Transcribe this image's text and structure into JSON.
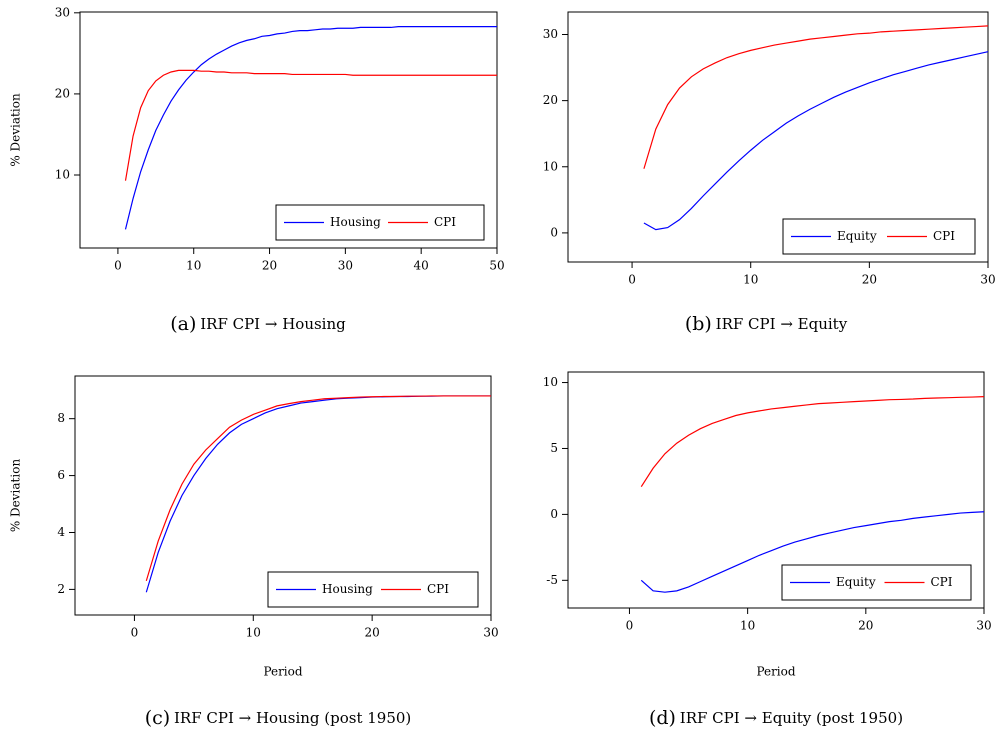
{
  "chart_data": [
    {
      "type": "line",
      "label": "(a)",
      "caption": "IRF CPI → Housing",
      "ylabel": "% Deviation",
      "x": [
        1,
        2,
        3,
        4,
        5,
        6,
        7,
        8,
        9,
        10,
        11,
        12,
        13,
        14,
        15,
        16,
        17,
        18,
        19,
        20,
        21,
        22,
        23,
        24,
        25,
        26,
        27,
        28,
        29,
        30,
        31,
        32,
        33,
        34,
        35,
        36,
        37,
        38,
        39,
        40,
        41,
        42,
        43,
        44,
        45,
        46,
        47,
        48,
        49,
        50
      ],
      "series": [
        {
          "name": "Housing",
          "color": "#0000ff",
          "values": [
            3.3,
            7.1,
            10.4,
            13.1,
            15.5,
            17.4,
            19.1,
            20.5,
            21.7,
            22.7,
            23.6,
            24.3,
            24.9,
            25.4,
            25.9,
            26.3,
            26.6,
            26.8,
            27.1,
            27.2,
            27.4,
            27.5,
            27.7,
            27.8,
            27.8,
            27.9,
            28.0,
            28.0,
            28.1,
            28.1,
            28.1,
            28.2,
            28.2,
            28.2,
            28.2,
            28.2,
            28.3,
            28.3,
            28.3,
            28.3,
            28.3,
            28.3,
            28.3,
            28.3,
            28.3,
            28.3,
            28.3,
            28.3,
            28.3,
            28.3
          ]
        },
        {
          "name": "CPI",
          "color": "#ff0000",
          "values": [
            9.3,
            14.8,
            18.3,
            20.4,
            21.6,
            22.3,
            22.7,
            22.9,
            22.9,
            22.9,
            22.8,
            22.8,
            22.7,
            22.7,
            22.6,
            22.6,
            22.6,
            22.5,
            22.5,
            22.5,
            22.5,
            22.5,
            22.4,
            22.4,
            22.4,
            22.4,
            22.4,
            22.4,
            22.4,
            22.4,
            22.3,
            22.3,
            22.3,
            22.3,
            22.3,
            22.3,
            22.3,
            22.3,
            22.3,
            22.3,
            22.3,
            22.3,
            22.3,
            22.3,
            22.3,
            22.3,
            22.3,
            22.3,
            22.3,
            22.3
          ]
        }
      ],
      "xlim": [
        -5,
        50
      ],
      "xticks": [
        0,
        10,
        20,
        30,
        40,
        50
      ],
      "ylim": [
        1.0,
        30.1
      ],
      "yticks": [
        10,
        20,
        30
      ],
      "legend": "lower right"
    },
    {
      "type": "line",
      "label": "(b)",
      "caption": "IRF CPI → Equity",
      "x": [
        1,
        2,
        3,
        4,
        5,
        6,
        7,
        8,
        9,
        10,
        11,
        12,
        13,
        14,
        15,
        16,
        17,
        18,
        19,
        20,
        21,
        22,
        23,
        24,
        25,
        26,
        27,
        28,
        29,
        30
      ],
      "series": [
        {
          "name": "Equity",
          "color": "#0000ff",
          "values": [
            1.5,
            0.5,
            0.8,
            2.0,
            3.7,
            5.6,
            7.4,
            9.2,
            10.9,
            12.5,
            14.0,
            15.3,
            16.6,
            17.7,
            18.7,
            19.6,
            20.5,
            21.3,
            22.0,
            22.7,
            23.3,
            23.9,
            24.4,
            24.9,
            25.4,
            25.8,
            26.2,
            26.6,
            27.0,
            27.4
          ]
        },
        {
          "name": "CPI",
          "color": "#ff0000",
          "values": [
            9.7,
            15.7,
            19.4,
            21.9,
            23.6,
            24.8,
            25.7,
            26.5,
            27.1,
            27.6,
            28.0,
            28.4,
            28.7,
            29.0,
            29.3,
            29.5,
            29.7,
            29.9,
            30.1,
            30.2,
            30.4,
            30.5,
            30.6,
            30.7,
            30.8,
            30.9,
            31.0,
            31.1,
            31.2,
            31.3
          ]
        }
      ],
      "xlim": [
        -5.4,
        30
      ],
      "xticks": [
        0,
        10,
        20,
        30
      ],
      "ylim": [
        -4.4,
        33.4
      ],
      "yticks": [
        0,
        10,
        20,
        30
      ],
      "legend": "lower right"
    },
    {
      "type": "line",
      "label": "(c)",
      "caption": "IRF CPI → Housing (post 1950)",
      "ylabel": "% Deviation",
      "xlabel": "Period",
      "x": [
        1,
        2,
        3,
        4,
        5,
        6,
        7,
        8,
        9,
        10,
        11,
        12,
        13,
        14,
        15,
        16,
        17,
        18,
        19,
        20,
        21,
        22,
        23,
        24,
        25,
        26,
        27,
        28,
        29,
        30
      ],
      "series": [
        {
          "name": "Housing",
          "color": "#0000ff",
          "values": [
            1.9,
            3.3,
            4.4,
            5.3,
            6.0,
            6.6,
            7.1,
            7.5,
            7.8,
            8.0,
            8.2,
            8.35,
            8.45,
            8.55,
            8.6,
            8.65,
            8.7,
            8.72,
            8.74,
            8.76,
            8.77,
            8.78,
            8.78,
            8.79,
            8.79,
            8.8,
            8.8,
            8.8,
            8.8,
            8.8
          ]
        },
        {
          "name": "CPI",
          "color": "#ff0000",
          "values": [
            2.3,
            3.7,
            4.8,
            5.7,
            6.4,
            6.9,
            7.3,
            7.7,
            7.95,
            8.15,
            8.3,
            8.45,
            8.53,
            8.6,
            8.65,
            8.7,
            8.72,
            8.74,
            8.76,
            8.77,
            8.78,
            8.78,
            8.79,
            8.79,
            8.8,
            8.8,
            8.8,
            8.8,
            8.8,
            8.8
          ]
        }
      ],
      "xlim": [
        -5,
        30
      ],
      "xticks": [
        0,
        10,
        20,
        30
      ],
      "ylim": [
        1.1,
        9.5
      ],
      "yticks": [
        2,
        4,
        6,
        8
      ],
      "legend": "lower right"
    },
    {
      "type": "line",
      "label": "(d)",
      "caption": "IRF CPI → Equity (post 1950)",
      "xlabel": "Period",
      "x": [
        1,
        2,
        3,
        4,
        5,
        6,
        7,
        8,
        9,
        10,
        11,
        12,
        13,
        14,
        15,
        16,
        17,
        18,
        19,
        20,
        21,
        22,
        23,
        24,
        25,
        26,
        27,
        28,
        29,
        30
      ],
      "series": [
        {
          "name": "Equity",
          "color": "#0000ff",
          "values": [
            -5.0,
            -5.8,
            -5.9,
            -5.8,
            -5.5,
            -5.1,
            -4.7,
            -4.3,
            -3.9,
            -3.5,
            -3.1,
            -2.75,
            -2.4,
            -2.1,
            -1.85,
            -1.6,
            -1.4,
            -1.2,
            -1.0,
            -0.85,
            -0.7,
            -0.55,
            -0.45,
            -0.3,
            -0.2,
            -0.1,
            0.0,
            0.1,
            0.15,
            0.2
          ]
        },
        {
          "name": "CPI",
          "color": "#ff0000",
          "values": [
            2.1,
            3.5,
            4.6,
            5.4,
            6.0,
            6.5,
            6.9,
            7.2,
            7.5,
            7.7,
            7.85,
            8.0,
            8.1,
            8.2,
            8.3,
            8.4,
            8.45,
            8.5,
            8.55,
            8.6,
            8.65,
            8.7,
            8.72,
            8.75,
            8.8,
            8.83,
            8.85,
            8.88,
            8.9,
            8.93
          ]
        }
      ],
      "xlim": [
        -5.2,
        30
      ],
      "xticks": [
        0,
        10,
        20,
        30
      ],
      "ylim": [
        -7.1,
        10.8
      ],
      "yticks": [
        -5,
        0,
        5,
        10
      ],
      "legend": "lower right"
    }
  ]
}
